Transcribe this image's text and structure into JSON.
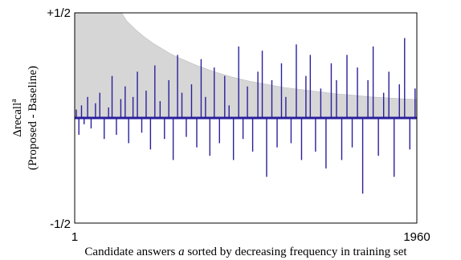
{
  "chart_data": {
    "type": "bar",
    "title": "",
    "xlabel_parts": [
      "Candidate answers ",
      "a",
      " sorted by decreasing frequency in training set"
    ],
    "ylabel_line1": "Δrecall",
    "ylabel_sup": "a",
    "ylabel_line2": "(Proposed - Baseline)",
    "x_ticks": [
      "1",
      "1960"
    ],
    "y_ticks": [
      "+1/2",
      "-1/2"
    ],
    "xlim": [
      1,
      1960
    ],
    "ylim": [
      -0.5,
      0.5
    ],
    "grid": false,
    "legend": "none",
    "colors": {
      "delta_bars": "#2a1f9c",
      "upper_bound_area": "#d6d6d6",
      "upper_bound_edge": "#bdbdbd",
      "axis": "#000000"
    },
    "series": [
      {
        "role": "upper-bound envelope (grey area)",
        "x": [
          1,
          270,
          300,
          350,
          400,
          450,
          500,
          550,
          600,
          700,
          800,
          900,
          1000,
          1100,
          1200,
          1300,
          1400,
          1500,
          1600,
          1700,
          1800,
          1900,
          1960
        ],
        "values": [
          0.5,
          0.5,
          0.46,
          0.42,
          0.385,
          0.355,
          0.33,
          0.305,
          0.285,
          0.25,
          0.22,
          0.195,
          0.175,
          0.16,
          0.145,
          0.135,
          0.125,
          0.115,
          0.108,
          0.1,
          0.095,
          0.09,
          0.088
        ]
      },
      {
        "role": "Δrecall per candidate answer (blue bars)",
        "x": [
          10,
          25,
          40,
          55,
          75,
          95,
          120,
          145,
          170,
          195,
          215,
          240,
          265,
          290,
          310,
          335,
          360,
          385,
          410,
          435,
          460,
          490,
          515,
          540,
          565,
          590,
          615,
          640,
          670,
          700,
          725,
          750,
          775,
          800,
          830,
          860,
          885,
          910,
          940,
          965,
          990,
          1020,
          1050,
          1075,
          1100,
          1130,
          1160,
          1185,
          1210,
          1240,
          1270,
          1300,
          1325,
          1350,
          1380,
          1410,
          1440,
          1470,
          1500,
          1530,
          1560,
          1590,
          1620,
          1650,
          1680,
          1710,
          1740,
          1770,
          1800,
          1830,
          1860,
          1890,
          1920,
          1950
        ],
        "values": [
          0.04,
          -0.08,
          0.06,
          -0.03,
          0.1,
          -0.05,
          0.07,
          0.12,
          -0.1,
          0.05,
          0.2,
          -0.08,
          0.09,
          0.15,
          -0.12,
          0.1,
          0.22,
          -0.07,
          0.13,
          -0.15,
          0.25,
          0.08,
          -0.1,
          0.18,
          -0.2,
          0.3,
          0.12,
          -0.09,
          0.16,
          -0.14,
          0.28,
          0.1,
          -0.18,
          0.24,
          -0.12,
          0.2,
          0.06,
          -0.2,
          0.34,
          -0.1,
          0.15,
          -0.16,
          0.22,
          0.32,
          -0.28,
          0.18,
          -0.14,
          0.26,
          0.1,
          -0.12,
          0.35,
          -0.2,
          0.2,
          0.3,
          -0.16,
          0.14,
          -0.24,
          0.26,
          0.18,
          -0.2,
          0.3,
          -0.14,
          0.24,
          -0.36,
          0.18,
          0.34,
          -0.18,
          0.12,
          0.22,
          -0.28,
          0.16,
          0.38,
          -0.15,
          0.14
        ]
      }
    ]
  }
}
